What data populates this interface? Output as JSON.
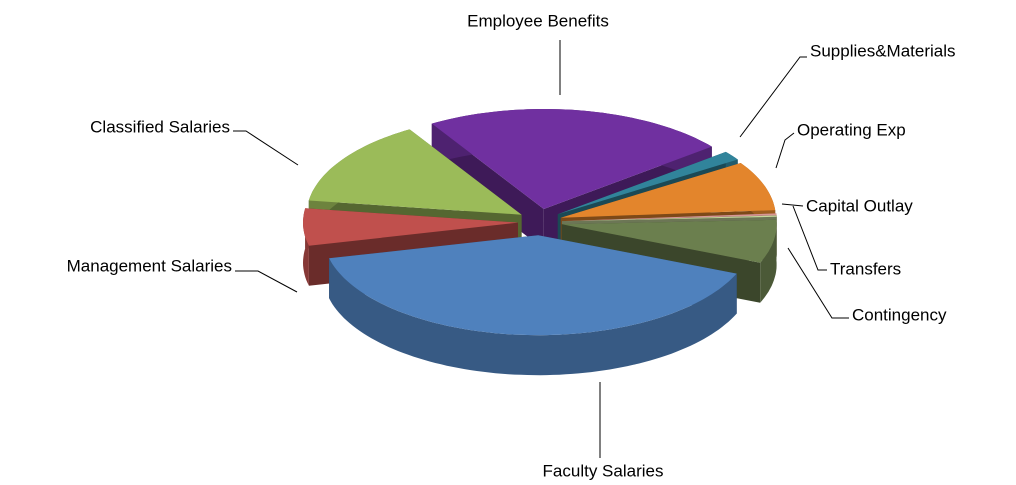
{
  "chart_data": {
    "type": "pie",
    "categories": [
      "Employee Benefits",
      "Supplies&Materials",
      "Operating Exp",
      "Capital Outlay",
      "Transfers",
      "Contingency",
      "Faculty Salaries",
      "Management Salaries",
      "Classified Salaries"
    ],
    "values": [
      23,
      1.5,
      8,
      0.3,
      0.2,
      7,
      40,
      6,
      14
    ],
    "colors": [
      "#7030a0",
      "#31849b",
      "#e3852c",
      "#d99694",
      "#c4d79b",
      "#6b7f4e",
      "#4f81bd",
      "#c0504d",
      "#9bbb59"
    ]
  }
}
